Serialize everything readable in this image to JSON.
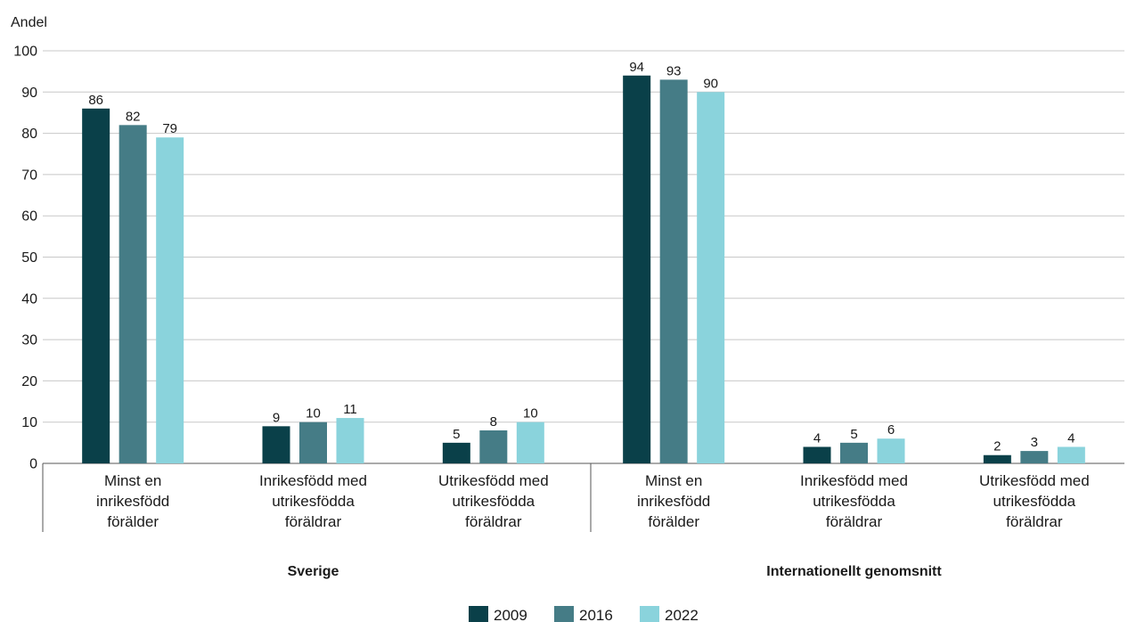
{
  "chart_data": {
    "type": "bar",
    "ylabel": "Andel",
    "ylim": [
      0,
      100
    ],
    "yticks": [
      0,
      10,
      20,
      30,
      40,
      50,
      60,
      70,
      80,
      90,
      100
    ],
    "grid": true,
    "legend_position": "bottom",
    "groups": [
      {
        "name": "Sverige",
        "categories": [
          "Minst en inrikesfödd förälder",
          "Inrikesfödd med utrikesfödda föräldrar",
          "Utrikesfödd med utrikesfödda föräldrar"
        ]
      },
      {
        "name": "Internationellt genomsnitt",
        "categories": [
          "Minst en inrikesfödd förälder",
          "Inrikesfödd med utrikesfödda föräldrar",
          "Utrikesfödd med utrikesfödda föräldrar"
        ]
      }
    ],
    "series": [
      {
        "name": "2009",
        "color": "#0a4049",
        "values": [
          86,
          9,
          5,
          94,
          4,
          2
        ]
      },
      {
        "name": "2016",
        "color": "#457c86",
        "values": [
          82,
          10,
          8,
          93,
          5,
          3
        ]
      },
      {
        "name": "2022",
        "color": "#8ad3dc",
        "values": [
          79,
          11,
          10,
          90,
          6,
          4
        ]
      }
    ]
  }
}
